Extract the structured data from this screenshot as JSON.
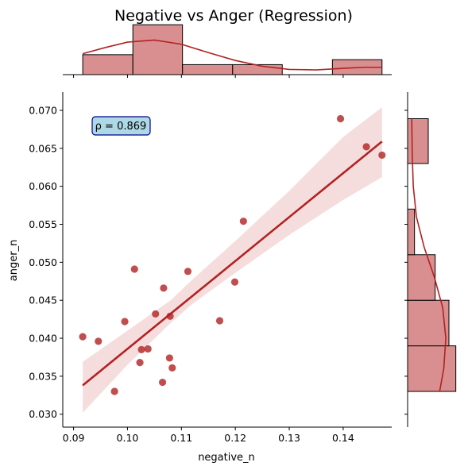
{
  "chart_data": {
    "type": "scatter",
    "title": "Negative vs Anger (Regression)",
    "xlabel": "negative_n",
    "ylabel": "anger_n",
    "xlim": [
      0.088,
      0.149
    ],
    "ylim": [
      0.0283,
      0.0724
    ],
    "x_ticks": [
      "0.09",
      "0.10",
      "0.11",
      "0.12",
      "0.13",
      "0.14"
    ],
    "y_ticks": [
      "0.030",
      "0.035",
      "0.040",
      "0.045",
      "0.050",
      "0.055",
      "0.060",
      "0.065",
      "0.070"
    ],
    "annotation": "ρ = 0.869",
    "colors": {
      "points": "#b22222",
      "regression_line": "#b22222",
      "confidence_band": "#e8b4b4",
      "hist_fill": "#d98f8f",
      "annotation_bg": "#add8e6",
      "annotation_border": "#00008b"
    },
    "points": [
      {
        "x": 0.0917,
        "y": 0.0402
      },
      {
        "x": 0.0946,
        "y": 0.0396
      },
      {
        "x": 0.0976,
        "y": 0.033
      },
      {
        "x": 0.0995,
        "y": 0.0422
      },
      {
        "x": 0.1013,
        "y": 0.0491
      },
      {
        "x": 0.1023,
        "y": 0.0368
      },
      {
        "x": 0.1026,
        "y": 0.0385
      },
      {
        "x": 0.1038,
        "y": 0.0386
      },
      {
        "x": 0.1052,
        "y": 0.0432
      },
      {
        "x": 0.1065,
        "y": 0.0342
      },
      {
        "x": 0.1067,
        "y": 0.0466
      },
      {
        "x": 0.1078,
        "y": 0.0374
      },
      {
        "x": 0.1079,
        "y": 0.0429
      },
      {
        "x": 0.1083,
        "y": 0.0361
      },
      {
        "x": 0.1112,
        "y": 0.0488
      },
      {
        "x": 0.1171,
        "y": 0.0423
      },
      {
        "x": 0.1199,
        "y": 0.0474
      },
      {
        "x": 0.1215,
        "y": 0.0554
      },
      {
        "x": 0.1395,
        "y": 0.0689
      },
      {
        "x": 0.1443,
        "y": 0.0652
      },
      {
        "x": 0.1472,
        "y": 0.0641
      }
    ],
    "regression": {
      "x_start": 0.0917,
      "y_start": 0.0338,
      "x_end": 0.1472,
      "y_end": 0.0659
    },
    "confidence_band": [
      {
        "x": 0.0917,
        "lower": 0.0302,
        "upper": 0.0369
      },
      {
        "x": 0.1,
        "lower": 0.0365,
        "upper": 0.041
      },
      {
        "x": 0.108,
        "lower": 0.042,
        "upper": 0.045
      },
      {
        "x": 0.112,
        "lower": 0.0445,
        "upper": 0.0477
      },
      {
        "x": 0.12,
        "lower": 0.0486,
        "upper": 0.0528
      },
      {
        "x": 0.13,
        "lower": 0.0536,
        "upper": 0.0594
      },
      {
        "x": 0.14,
        "lower": 0.0582,
        "upper": 0.0665
      },
      {
        "x": 0.1472,
        "lower": 0.0612,
        "upper": 0.0704
      }
    ],
    "top_histogram": {
      "bin_edges": [
        0.0917,
        0.101,
        0.1102,
        0.1195,
        0.1287,
        0.138,
        0.1472
      ],
      "counts": [
        4,
        10,
        2,
        2,
        0,
        3
      ],
      "ymax": 10.5,
      "kde": [
        {
          "x": 0.0917,
          "density": 0.4
        },
        {
          "x": 0.096,
          "density": 0.52
        },
        {
          "x": 0.1,
          "density": 0.62
        },
        {
          "x": 0.105,
          "density": 0.66
        },
        {
          "x": 0.11,
          "density": 0.58
        },
        {
          "x": 0.115,
          "density": 0.42
        },
        {
          "x": 0.12,
          "density": 0.27
        },
        {
          "x": 0.125,
          "density": 0.16
        },
        {
          "x": 0.13,
          "density": 0.1
        },
        {
          "x": 0.135,
          "density": 0.09
        },
        {
          "x": 0.14,
          "density": 0.12
        },
        {
          "x": 0.144,
          "density": 0.14
        },
        {
          "x": 0.1472,
          "density": 0.14
        }
      ],
      "kde_max": 1.0
    },
    "right_histogram": {
      "bin_edges": [
        0.033,
        0.039,
        0.045,
        0.051,
        0.057,
        0.063,
        0.0689
      ],
      "counts": [
        7,
        6,
        4,
        1,
        0,
        3
      ],
      "xmax": 7.5,
      "kde": [
        {
          "y": 0.033,
          "density": 0.62
        },
        {
          "y": 0.036,
          "density": 0.7
        },
        {
          "y": 0.04,
          "density": 0.74
        },
        {
          "y": 0.044,
          "density": 0.68
        },
        {
          "y": 0.048,
          "density": 0.52
        },
        {
          "y": 0.052,
          "density": 0.32
        },
        {
          "y": 0.056,
          "density": 0.17
        },
        {
          "y": 0.06,
          "density": 0.11
        },
        {
          "y": 0.064,
          "density": 0.09
        },
        {
          "y": 0.0689,
          "density": 0.08
        }
      ],
      "kde_max": 1.0
    }
  }
}
